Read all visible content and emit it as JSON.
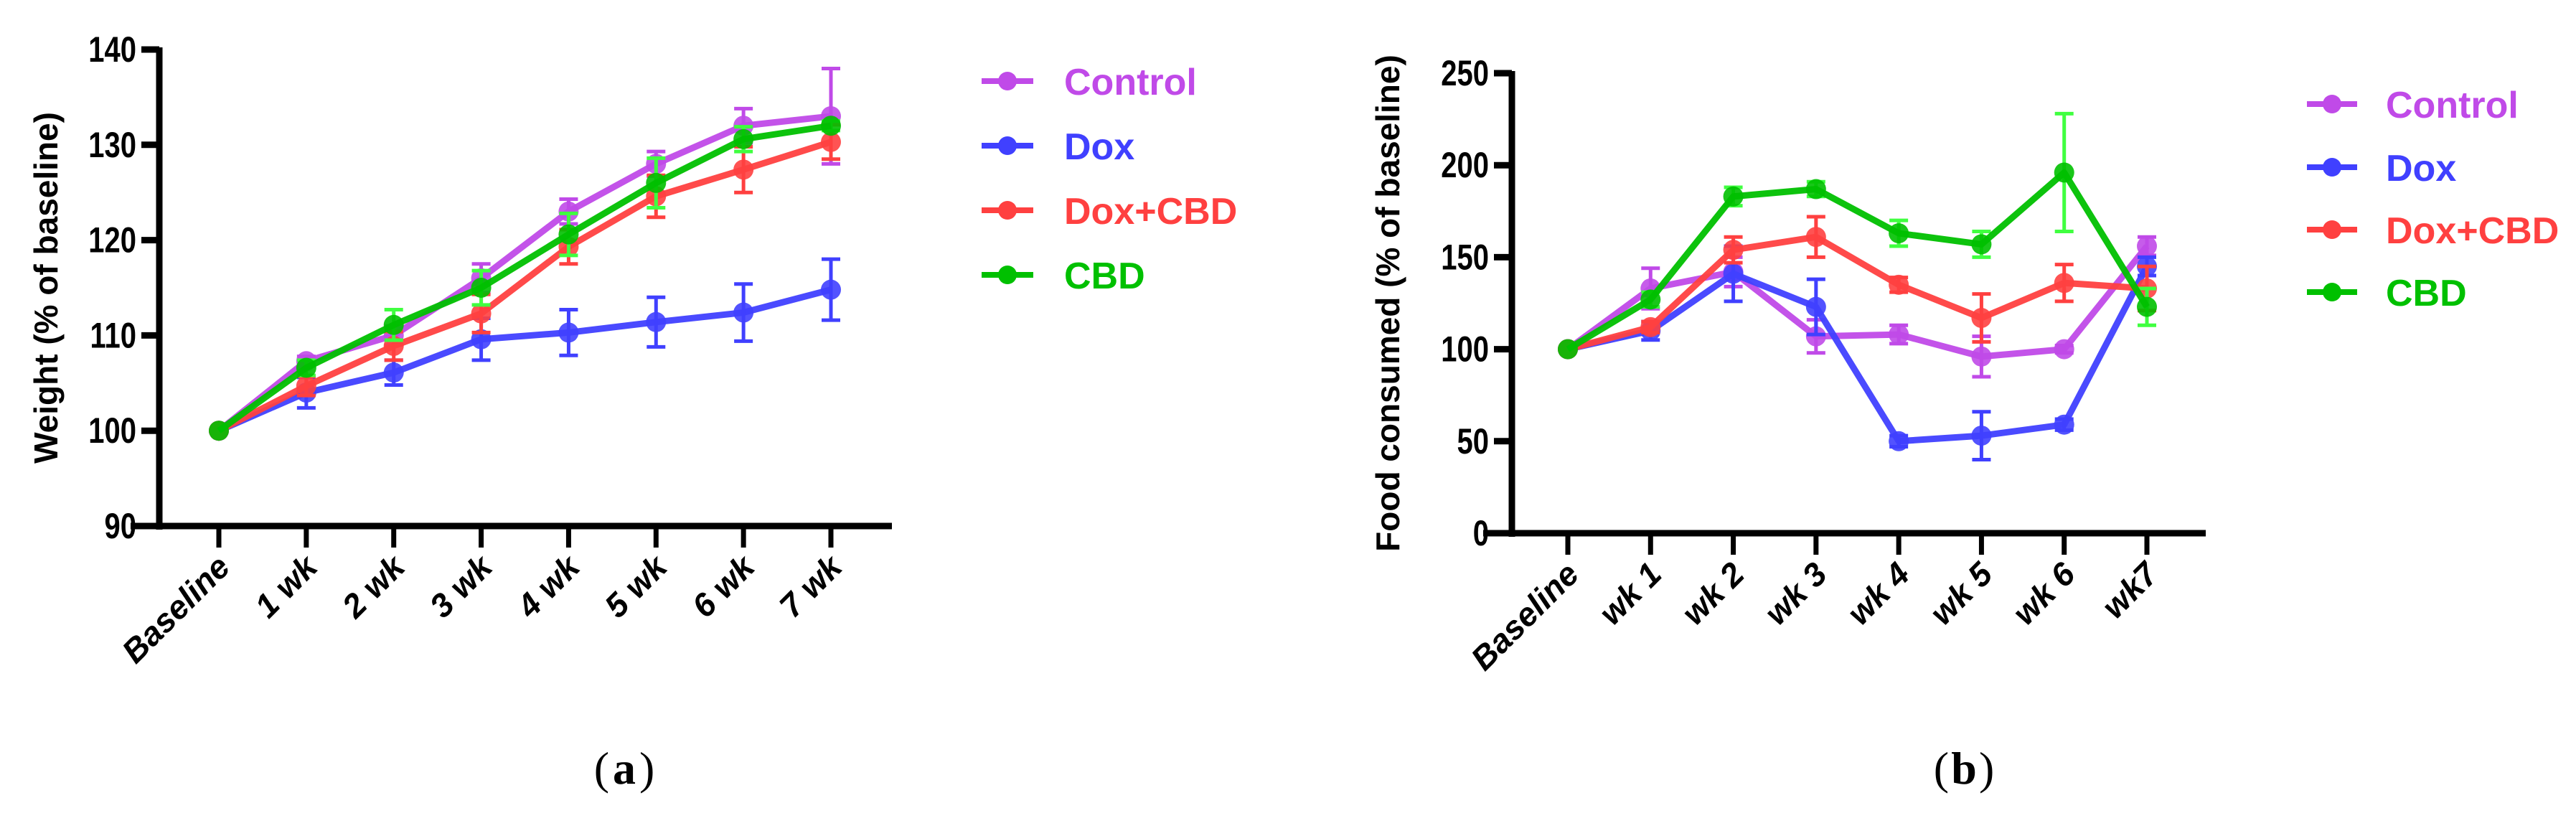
{
  "chart_data": [
    {
      "type": "line",
      "panel_label": "a",
      "title": "",
      "xlabel": "",
      "ylabel": "Weight (% of baseline)",
      "ylim": [
        90,
        140
      ],
      "yticks": [
        90,
        100,
        110,
        120,
        130,
        140
      ],
      "categories": [
        "Baseline",
        "1 wk",
        "2 wk",
        "3 wk",
        "4 wk",
        "5 wk",
        "6 wk",
        "7 wk"
      ],
      "legend_position": "right",
      "series": [
        {
          "name": "Control",
          "color": "#c04ae8",
          "error_color": "#c04ae8",
          "values": [
            100,
            107.3,
            110,
            116,
            123,
            128,
            132,
            133
          ],
          "errors": [
            0,
            0.5,
            1,
            1.5,
            1.3,
            1.3,
            1.8,
            5
          ]
        },
        {
          "name": "Dox",
          "color": "#4040ff",
          "error_color": "#4040ff",
          "values": [
            100,
            104,
            106.1,
            109.6,
            110.3,
            111.4,
            112.4,
            114.8
          ],
          "errors": [
            0,
            1.6,
            1.3,
            2.2,
            2.4,
            2.6,
            3,
            3.2
          ]
        },
        {
          "name": "Dox+CBD",
          "color": "#ff4040",
          "error_color": "#ff4040",
          "values": [
            100,
            104.7,
            108.9,
            112.3,
            119.3,
            124.6,
            127.4,
            130.3
          ],
          "errors": [
            0,
            1,
            1.5,
            2,
            1.8,
            2.2,
            2.4,
            1.8
          ]
        },
        {
          "name": "CBD",
          "color": "#00c000",
          "error_color": "#40ff40",
          "values": [
            100,
            106.6,
            111.1,
            115,
            120.6,
            126,
            130.6,
            132
          ],
          "errors": [
            0,
            0.8,
            1.6,
            1.8,
            2.2,
            2.6,
            1.3,
            0.5
          ]
        }
      ]
    },
    {
      "type": "line",
      "panel_label": "b",
      "title": "",
      "xlabel": "",
      "ylabel": "Food consumed (% of baseline)",
      "ylim": [
        0,
        250
      ],
      "yticks": [
        0,
        50,
        100,
        150,
        200,
        250
      ],
      "categories": [
        "Baseline",
        "wk 1",
        "wk 2",
        "wk 3",
        "wk 4",
        "wk 5",
        "wk 6",
        "wk7"
      ],
      "legend_position": "right",
      "series": [
        {
          "name": "Control",
          "color": "#c04ae8",
          "error_color": "#c04ae8",
          "values": [
            100,
            133,
            142,
            107,
            108,
            96,
            100,
            156
          ],
          "errors": [
            0,
            11,
            8,
            9,
            5,
            11,
            2,
            5
          ]
        },
        {
          "name": "Dox",
          "color": "#4040ff",
          "error_color": "#4040ff",
          "values": [
            100,
            110,
            141,
            123,
            50,
            53,
            59,
            145
          ],
          "errors": [
            0,
            5,
            15,
            15,
            3,
            13,
            3,
            5
          ]
        },
        {
          "name": "Dox+CBD",
          "color": "#ff4040",
          "error_color": "#ff4040",
          "values": [
            100,
            112,
            154,
            161,
            135,
            117,
            136,
            133
          ],
          "errors": [
            0,
            3,
            7,
            11,
            4,
            13,
            10,
            12
          ]
        },
        {
          "name": "CBD",
          "color": "#00c000",
          "error_color": "#40ff40",
          "values": [
            100,
            127,
            183,
            187,
            163,
            157,
            196,
            123
          ],
          "errors": [
            0,
            4,
            5,
            4,
            7,
            7,
            32,
            10
          ]
        }
      ]
    }
  ]
}
